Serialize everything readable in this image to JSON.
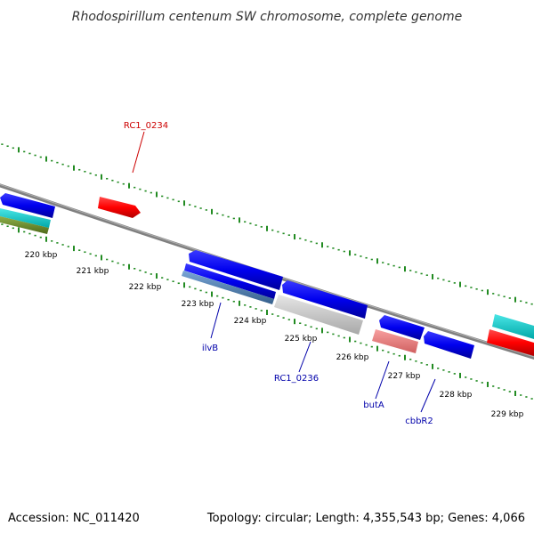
{
  "title": "Rhodospirillum centenum SW chromosome, complete genome",
  "footer": {
    "accession": "Accession: NC_011420",
    "summary": "Topology: circular; Length: 4,355,543 bp; Genes: 4,066"
  },
  "ticks": [
    {
      "label": "220 kbp"
    },
    {
      "label": "221 kbp"
    },
    {
      "label": "222 kbp"
    },
    {
      "label": "223 kbp"
    },
    {
      "label": "224 kbp"
    },
    {
      "label": "225 kbp"
    },
    {
      "label": "226 kbp"
    },
    {
      "label": "227 kbp"
    },
    {
      "label": "228 kbp"
    },
    {
      "label": "229 kbp"
    }
  ],
  "gene_labels": [
    {
      "label": "RC1_0234",
      "color": "#cc0000"
    },
    {
      "label": "ilvB",
      "color": "#0000aa"
    },
    {
      "label": "RC1_0236",
      "color": "#0000aa"
    },
    {
      "label": "butA",
      "color": "#0000aa"
    },
    {
      "label": "cbbR2",
      "color": "#0000aa"
    }
  ],
  "colors": {
    "backbone": "#808080",
    "tick": "#228b22",
    "forward_gene": "#ff0000",
    "reverse_gene": "#0000ee",
    "cyan_track": "#00cccc",
    "olive_track": "#6b8e23",
    "steel_track": "#4682b4",
    "grey_track": "#c0c0c0",
    "pink_track": "#f08080"
  }
}
